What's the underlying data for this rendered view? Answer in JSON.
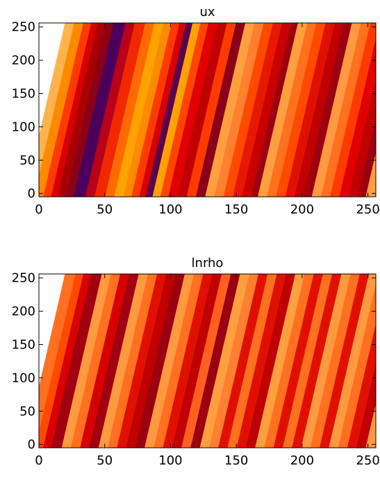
{
  "charts": [
    {
      "chart_data": {
        "type": "heatmap",
        "title": "ux",
        "xlabel": "",
        "ylabel": "",
        "xlim": [
          0,
          256
        ],
        "ylim": [
          -5,
          256
        ],
        "x_ticks": [
          "0",
          "50",
          "100",
          "150",
          "200",
          "250"
        ],
        "y_ticks": [
          "0",
          "50",
          "100",
          "150",
          "200",
          "250"
        ],
        "stripe_slope_x_per_y": 0.117,
        "stripes": [
          {
            "x_start": -10,
            "x_end": -3,
            "color": "#ffb34d"
          },
          {
            "x_start": -3,
            "x_end": 4,
            "color": "#ff8a00"
          },
          {
            "x_start": 4,
            "x_end": 10,
            "color": "#ff3a00"
          },
          {
            "x_start": 10,
            "x_end": 15,
            "color": "#d60000"
          },
          {
            "x_start": 15,
            "x_end": 21,
            "color": "#a80000"
          },
          {
            "x_start": 21,
            "x_end": 27,
            "color": "#8a0018"
          },
          {
            "x_start": 27,
            "x_end": 36,
            "color": "#4a005a"
          },
          {
            "x_start": 36,
            "x_end": 43,
            "color": "#b8001a"
          },
          {
            "x_start": 43,
            "x_end": 51,
            "color": "#f02800"
          },
          {
            "x_start": 51,
            "x_end": 58,
            "color": "#ff6a00"
          },
          {
            "x_start": 58,
            "x_end": 65,
            "color": "#ffa200"
          },
          {
            "x_start": 65,
            "x_end": 71,
            "color": "#ff8a00"
          },
          {
            "x_start": 71,
            "x_end": 77,
            "color": "#ff3a00"
          },
          {
            "x_start": 77,
            "x_end": 82,
            "color": "#d60000"
          },
          {
            "x_start": 82,
            "x_end": 87,
            "color": "#5a0050"
          },
          {
            "x_start": 87,
            "x_end": 93,
            "color": "#ffa200"
          },
          {
            "x_start": 93,
            "x_end": 99,
            "color": "#ff4500"
          },
          {
            "x_start": 99,
            "x_end": 106,
            "color": "#e00000"
          },
          {
            "x_start": 106,
            "x_end": 113,
            "color": "#c00000"
          },
          {
            "x_start": 113,
            "x_end": 120,
            "color": "#ff3a00"
          },
          {
            "x_start": 120,
            "x_end": 127,
            "color": "#8a0018"
          },
          {
            "x_start": 127,
            "x_end": 134,
            "color": "#ffa040"
          },
          {
            "x_start": 134,
            "x_end": 141,
            "color": "#ff8030"
          },
          {
            "x_start": 141,
            "x_end": 148,
            "color": "#ff4a00"
          },
          {
            "x_start": 148,
            "x_end": 155,
            "color": "#e81800"
          },
          {
            "x_start": 155,
            "x_end": 162,
            "color": "#c80000"
          },
          {
            "x_start": 162,
            "x_end": 167,
            "color": "#9a0010"
          },
          {
            "x_start": 167,
            "x_end": 174,
            "color": "#ffa040"
          },
          {
            "x_start": 174,
            "x_end": 181,
            "color": "#ff7020"
          },
          {
            "x_start": 181,
            "x_end": 188,
            "color": "#ff4a00"
          },
          {
            "x_start": 188,
            "x_end": 195,
            "color": "#e01000"
          },
          {
            "x_start": 195,
            "x_end": 202,
            "color": "#c00000"
          },
          {
            "x_start": 202,
            "x_end": 208,
            "color": "#9a0010"
          },
          {
            "x_start": 208,
            "x_end": 215,
            "color": "#ff9a40"
          },
          {
            "x_start": 215,
            "x_end": 222,
            "color": "#ff7020"
          },
          {
            "x_start": 222,
            "x_end": 229,
            "color": "#ff3a00"
          },
          {
            "x_start": 229,
            "x_end": 236,
            "color": "#e00000"
          },
          {
            "x_start": 236,
            "x_end": 243,
            "color": "#c00000"
          },
          {
            "x_start": 243,
            "x_end": 249,
            "color": "#9a0010"
          },
          {
            "x_start": 249,
            "x_end": 256,
            "color": "#ffa040"
          },
          {
            "x_start": 256,
            "x_end": 266,
            "color": "#ff7020"
          }
        ]
      }
    },
    {
      "chart_data": {
        "type": "heatmap",
        "title": "lnrho",
        "xlabel": "",
        "ylabel": "",
        "xlim": [
          0,
          256
        ],
        "ylim": [
          -5,
          256
        ],
        "x_ticks": [
          "0",
          "50",
          "100",
          "150",
          "200",
          "250"
        ],
        "y_ticks": [
          "0",
          "50",
          "100",
          "150",
          "200",
          "250"
        ],
        "stripe_slope_x_per_y": 0.117,
        "stripes": [
          {
            "x_start": -10,
            "x_end": -2,
            "color": "#ff7020"
          },
          {
            "x_start": -2,
            "x_end": 4,
            "color": "#ff4a00"
          },
          {
            "x_start": 4,
            "x_end": 10,
            "color": "#d80000"
          },
          {
            "x_start": 10,
            "x_end": 18,
            "color": "#a00010"
          },
          {
            "x_start": 18,
            "x_end": 25,
            "color": "#ff9a40"
          },
          {
            "x_start": 25,
            "x_end": 32,
            "color": "#ff7020"
          },
          {
            "x_start": 32,
            "x_end": 39,
            "color": "#d60000"
          },
          {
            "x_start": 39,
            "x_end": 46,
            "color": "#a00010"
          },
          {
            "x_start": 46,
            "x_end": 53,
            "color": "#ff9a40"
          },
          {
            "x_start": 53,
            "x_end": 60,
            "color": "#ff7020"
          },
          {
            "x_start": 60,
            "x_end": 67,
            "color": "#e01000"
          },
          {
            "x_start": 67,
            "x_end": 74,
            "color": "#c00000"
          },
          {
            "x_start": 74,
            "x_end": 81,
            "color": "#9a0010"
          },
          {
            "x_start": 81,
            "x_end": 88,
            "color": "#ff9a40"
          },
          {
            "x_start": 88,
            "x_end": 95,
            "color": "#ff7020"
          },
          {
            "x_start": 95,
            "x_end": 102,
            "color": "#e01000"
          },
          {
            "x_start": 102,
            "x_end": 109,
            "color": "#c00000"
          },
          {
            "x_start": 109,
            "x_end": 116,
            "color": "#ff6020"
          },
          {
            "x_start": 116,
            "x_end": 123,
            "color": "#9a0010"
          },
          {
            "x_start": 123,
            "x_end": 130,
            "color": "#ffa040"
          },
          {
            "x_start": 130,
            "x_end": 137,
            "color": "#ff8030"
          },
          {
            "x_start": 137,
            "x_end": 144,
            "color": "#e01000"
          },
          {
            "x_start": 144,
            "x_end": 151,
            "color": "#ff7020"
          },
          {
            "x_start": 151,
            "x_end": 158,
            "color": "#e01000"
          },
          {
            "x_start": 158,
            "x_end": 165,
            "color": "#c00000"
          },
          {
            "x_start": 165,
            "x_end": 172,
            "color": "#ffa040"
          },
          {
            "x_start": 172,
            "x_end": 179,
            "color": "#ff7020"
          },
          {
            "x_start": 179,
            "x_end": 186,
            "color": "#e01000"
          },
          {
            "x_start": 186,
            "x_end": 193,
            "color": "#ff7020"
          },
          {
            "x_start": 193,
            "x_end": 200,
            "color": "#e01000"
          },
          {
            "x_start": 200,
            "x_end": 207,
            "color": "#ff9a40"
          },
          {
            "x_start": 207,
            "x_end": 214,
            "color": "#ff7020"
          },
          {
            "x_start": 214,
            "x_end": 221,
            "color": "#e01000"
          },
          {
            "x_start": 221,
            "x_end": 228,
            "color": "#ff9a40"
          },
          {
            "x_start": 228,
            "x_end": 235,
            "color": "#ff7020"
          },
          {
            "x_start": 235,
            "x_end": 242,
            "color": "#e01000"
          },
          {
            "x_start": 242,
            "x_end": 249,
            "color": "#c00000"
          },
          {
            "x_start": 249,
            "x_end": 256,
            "color": "#ff9a40"
          },
          {
            "x_start": 256,
            "x_end": 266,
            "color": "#ff7020"
          }
        ]
      }
    }
  ]
}
